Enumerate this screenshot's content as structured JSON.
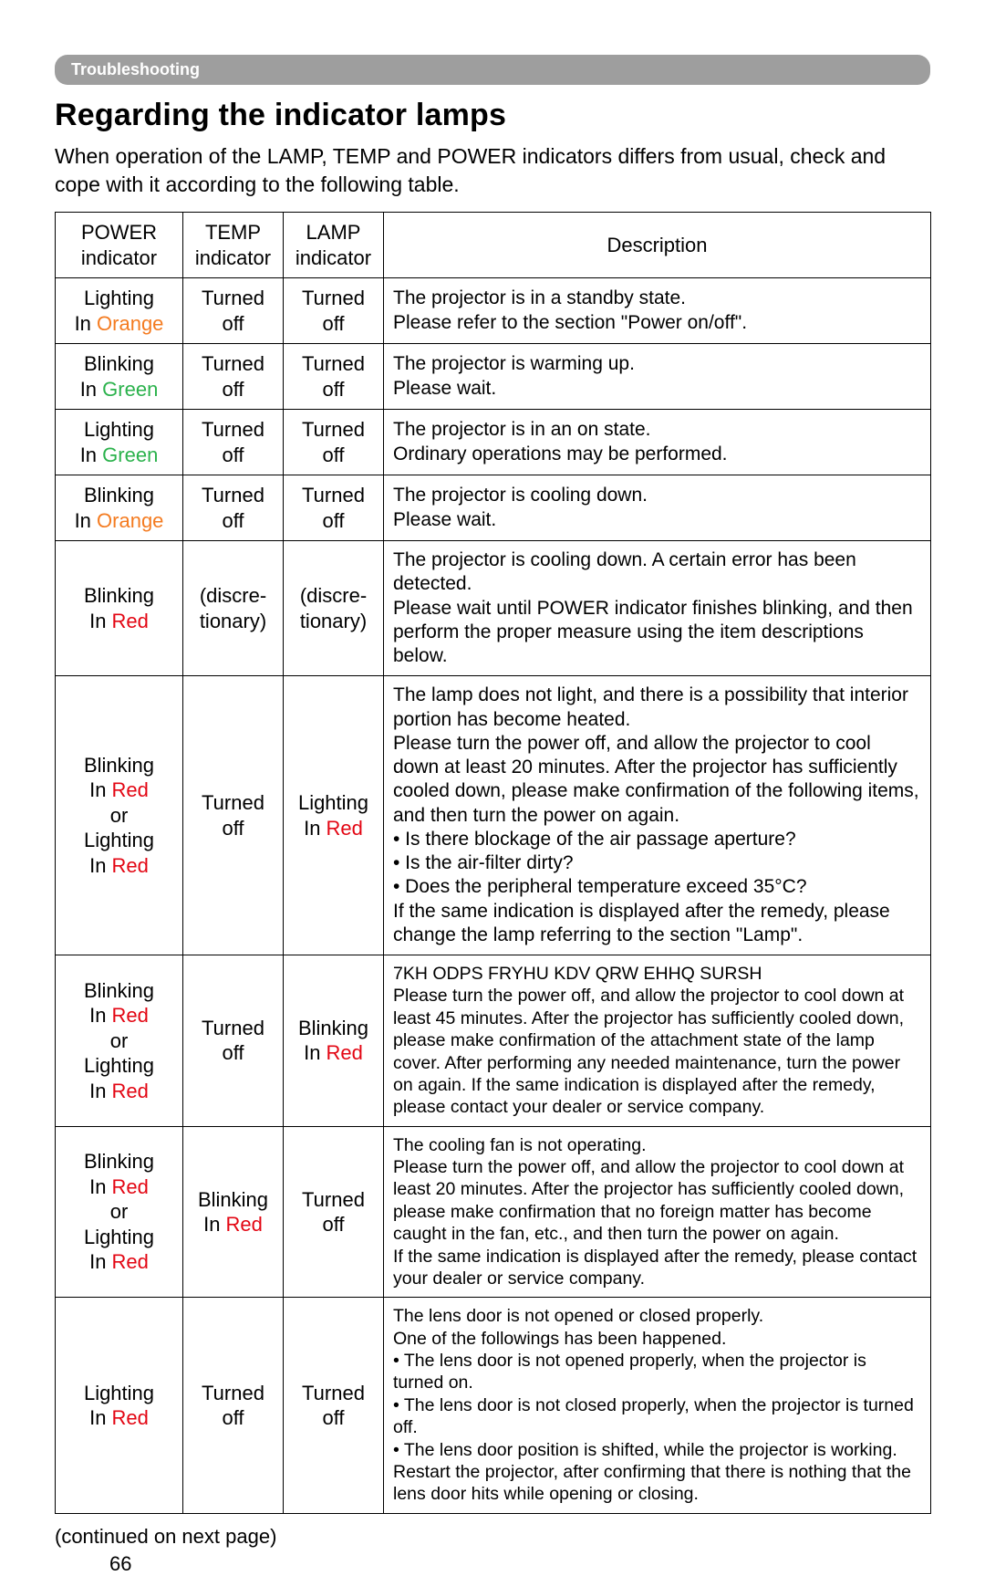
{
  "section_tab": "Troubleshooting",
  "heading": "Regarding the indicator lamps",
  "intro": "When operation of the LAMP, TEMP and POWER indicators differs from usual, check and cope with it according to the following table.",
  "colors": {
    "orange": "#f47b20",
    "green": "#2bb24c",
    "red": "#e30613",
    "tab_bg": "#9e9e9e",
    "tab_fg": "#ffffff",
    "page_bg": "#ffffff",
    "text": "#000000",
    "border": "#000000"
  },
  "columns": {
    "power": "POWER indicator",
    "temp": "TEMP indicator",
    "lamp": "LAMP indicator",
    "desc": "Description"
  },
  "rows": [
    {
      "power_l1": "Lighting",
      "power_l2": "In ",
      "power_color": "Orange",
      "power_class": "orange",
      "temp": "Turned off",
      "lamp": "Turned off",
      "desc": "The projector is in a standby state.\nPlease refer to the section \"Power on/off\"."
    },
    {
      "power_l1": "Blinking",
      "power_l2": "In ",
      "power_color": "Green",
      "power_class": "green",
      "temp": "Turned off",
      "lamp": "Turned off",
      "desc": "The projector is warming up.\nPlease wait."
    },
    {
      "power_l1": "Lighting",
      "power_l2": "In ",
      "power_color": "Green",
      "power_class": "green",
      "temp": "Turned off",
      "lamp": "Turned off",
      "desc": "The projector is in an on state.\nOrdinary operations may be performed."
    },
    {
      "power_l1": "Blinking",
      "power_l2": "In ",
      "power_color": "Orange",
      "power_class": "orange",
      "temp": "Turned off",
      "lamp": "Turned off",
      "desc": "The projector is cooling down.\nPlease wait."
    },
    {
      "power_l1": "Blinking",
      "power_l2": "In ",
      "power_color": "Red",
      "power_class": "red",
      "temp": "(discre-tionary)",
      "lamp": "(discre-tionary)",
      "desc": "The projector is cooling down. A certain error has been detected.\nPlease wait until POWER indicator finishes blinking, and then perform the proper measure using the item descriptions below."
    },
    {
      "power_multi": true,
      "temp": "Turned off",
      "lamp_l1": "Lighting",
      "lamp_l2": "In ",
      "lamp_color": "Red",
      "lamp_class": "red",
      "desc": "The lamp does not light, and there is a possibility that interior portion has become heated.\nPlease turn the power off, and allow the projector to cool down at least 20 minutes. After the projector has sufficiently cooled down, please make confirmation of the following items, and then turn the power on again.\n• Is there blockage of the air passage aperture?\n• Is the air-filter dirty?\n• Does the peripheral temperature exceed 35°C?\nIf the same indication is displayed after the remedy, please change the lamp referring to the section \"Lamp\"."
    },
    {
      "power_multi": true,
      "temp": "Turned off",
      "lamp_l1": "Blinking",
      "lamp_l2": "In ",
      "lamp_color": "Red",
      "lamp_class": "red",
      "desc_small": true,
      "desc": "7KH ODPS FRYHU KDV QRW EHHQ SURSH\nPlease turn the power off, and allow the projector to cool down at least 45 minutes. After the projector has sufficiently cooled down, please make confirmation of the attachment state of the lamp cover. After performing any needed maintenance, turn the power on again. If the same indication is displayed after the remedy, please contact your dealer or service company."
    },
    {
      "power_multi": true,
      "temp_l1": "Blinking",
      "temp_l2": "In ",
      "temp_color": "Red",
      "temp_class": "red",
      "lamp": "Turned off",
      "desc_small": true,
      "desc": "The cooling fan is not operating.\nPlease turn the power off, and allow the projector to cool down at least 20 minutes. After the projector has sufficiently cooled down, please make confirmation that no foreign matter has become caught in the fan, etc., and then turn the power on again.\nIf the same indication is displayed after the remedy, please contact your dealer or service company."
    },
    {
      "power_l1": "Lighting",
      "power_l2": "In ",
      "power_color": "Red",
      "power_class": "red",
      "temp": "Turned off",
      "lamp": "Turned off",
      "desc_small": true,
      "desc": "The lens door is not opened or closed properly.\nOne of the followings has been happened.\n• The lens door is not opened properly, when the projector is turned on.\n• The lens door is not closed properly, when the projector is turned off.\n• The lens door position is shifted, while the projector is working.\nRestart the projector, after confirming that there is nothing that the lens door hits while opening or closing."
    }
  ],
  "power_multi_lines": {
    "l1": "Blinking",
    "l2_prefix": "In ",
    "l2_color": "Red",
    "l3": "or",
    "l4": "Lighting",
    "l5_prefix": "In ",
    "l5_color": "Red"
  },
  "footnote": "(continued on next page)",
  "pagenum": "66"
}
